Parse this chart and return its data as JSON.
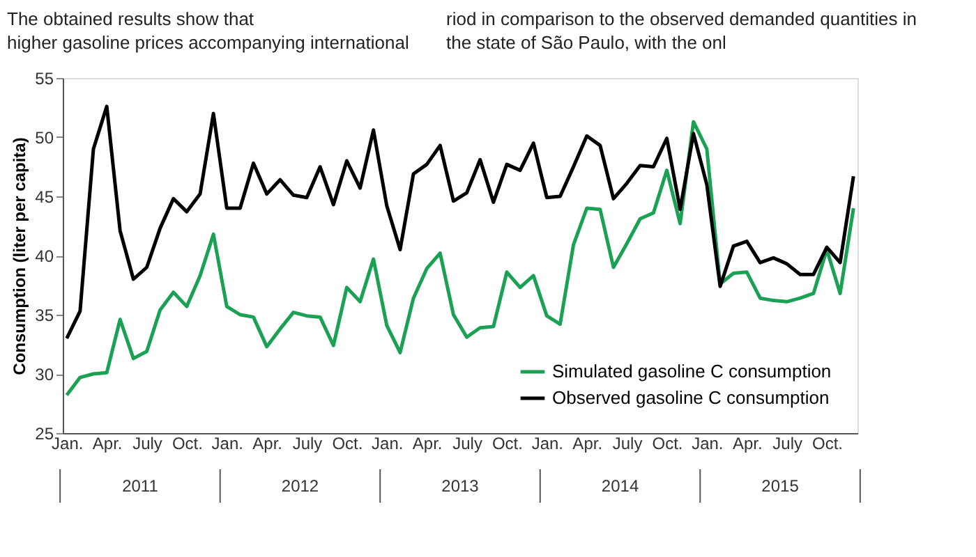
{
  "chart_data": {
    "type": "line",
    "ylabel": "Consumption (liter per capita)",
    "categories": [
      "Jan.",
      null,
      null,
      "Apr.",
      null,
      null,
      "July",
      null,
      null,
      "Oct.",
      null,
      null,
      "Jan.",
      null,
      null,
      "Apr.",
      null,
      null,
      "July",
      null,
      null,
      "Oct.",
      null,
      null,
      "Jan.",
      null,
      null,
      "Apr.",
      null,
      null,
      "July",
      null,
      null,
      "Oct.",
      null,
      null,
      "Jan.",
      null,
      null,
      "Apr.",
      null,
      null,
      "July",
      null,
      null,
      "Oct.",
      null,
      null,
      "Jan.",
      null,
      null,
      "Apr.",
      null,
      null,
      "July",
      null,
      null,
      "Oct.",
      null,
      null
    ],
    "ylim": [
      25,
      55
    ],
    "yticks": [
      25,
      30,
      35,
      40,
      45,
      50,
      55
    ],
    "grid": false,
    "legend": "bottom right",
    "marker": "none",
    "line_style": "solid",
    "annotations": [
      "The obtained results show that higher gasoline prices accompanying international",
      "riod in comparison to the observed demanded quantities in the state of São Paulo, with the onl",
      "2011",
      "2012",
      "2013",
      "2014",
      "2015"
    ],
    "series": [
      {
        "name": "Simulated gasoline C consumption",
        "color": "#1aa153",
        "values": [
          28.2,
          29.7,
          30.0,
          30.1,
          34.6,
          31.3,
          31.9,
          35.4,
          36.9,
          35.7,
          38.3,
          41.8,
          35.7,
          35.0,
          34.8,
          32.3,
          33.8,
          35.2,
          34.9,
          34.8,
          32.4,
          37.3,
          36.1,
          39.7,
          34.1,
          31.8,
          36.4,
          38.9,
          40.2,
          35.0,
          33.1,
          33.9,
          34.0,
          38.6,
          37.3,
          38.3,
          34.9,
          34.2,
          40.9,
          44.0,
          43.9,
          39.0,
          41.0,
          43.1,
          43.6,
          47.2,
          42.7,
          51.3,
          49.0,
          37.6,
          38.5,
          38.6,
          36.4,
          36.2,
          36.1,
          36.4,
          36.8,
          40.5,
          36.8,
          44.0
        ]
      },
      {
        "name": "Observed gasoline C consumption",
        "color": "#000000",
        "values": [
          33.0,
          35.3,
          49.0,
          52.6,
          42.1,
          38.0,
          39.0,
          42.3,
          44.8,
          43.7,
          45.2,
          52.0,
          44.0,
          44.0,
          47.8,
          45.2,
          46.4,
          45.1,
          44.9,
          47.5,
          44.3,
          48.0,
          45.7,
          50.6,
          44.2,
          40.5,
          46.9,
          47.7,
          49.3,
          44.6,
          45.3,
          48.1,
          44.5,
          47.7,
          47.2,
          49.5,
          44.9,
          45.0,
          47.5,
          50.1,
          49.3,
          44.8,
          46.1,
          47.6,
          47.5,
          49.9,
          43.9,
          50.3,
          46.0,
          37.4,
          40.8,
          41.2,
          39.4,
          39.8,
          39.3,
          38.4,
          38.4,
          40.7,
          39.4,
          46.7
        ]
      }
    ]
  }
}
